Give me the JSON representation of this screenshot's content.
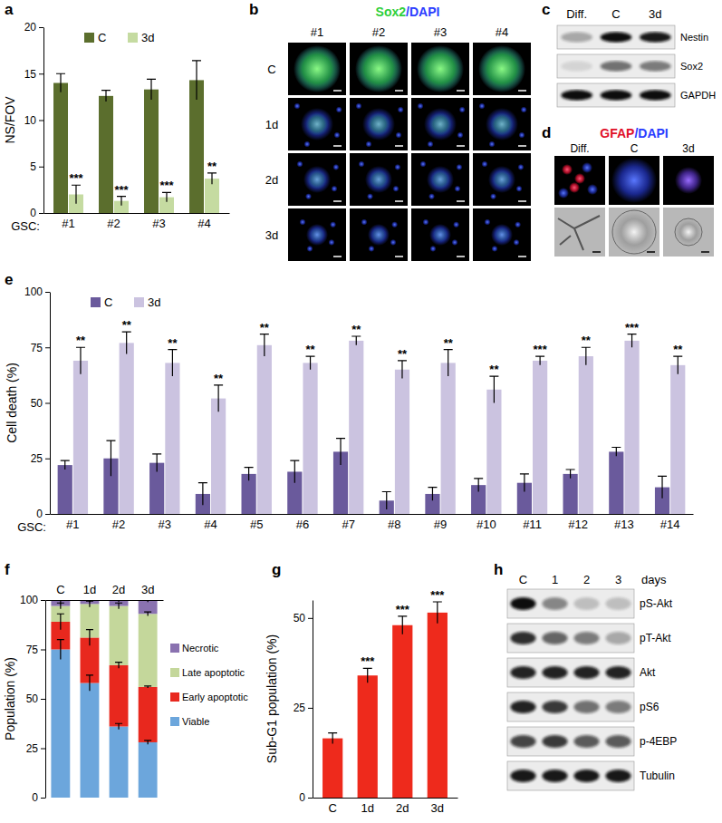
{
  "chart_data": [
    {
      "type": "bar",
      "title": "a",
      "xlabel": "GSC:",
      "ylabel": "NS/FOV",
      "categories": [
        "#1",
        "#2",
        "#3",
        "#4"
      ],
      "series": [
        {
          "name": "C",
          "color": "#5b6e2d",
          "values": [
            14,
            12.6,
            13.3,
            14.3
          ],
          "errors": [
            1,
            0.6,
            1.1,
            2.1
          ]
        },
        {
          "name": "3d",
          "color": "#c5dba1",
          "values": [
            2,
            1.3,
            1.7,
            3.7
          ],
          "errors": [
            1,
            0.5,
            0.5,
            0.6
          ],
          "annotations": [
            "***",
            "***",
            "***",
            "**"
          ]
        }
      ],
      "ylim": [
        0,
        20
      ],
      "yticks": [
        0,
        5,
        10,
        15,
        20
      ],
      "legend": "top"
    },
    {
      "type": "bar",
      "title": "e",
      "xlabel": "GSC:",
      "ylabel": "Cell death (%)",
      "categories": [
        "#1",
        "#2",
        "#3",
        "#4",
        "#5",
        "#6",
        "#7",
        "#8",
        "#9",
        "#10",
        "#11",
        "#12",
        "#13",
        "#14"
      ],
      "series": [
        {
          "name": "C",
          "color": "#6a5a9c",
          "values": [
            22,
            25,
            23,
            9,
            18,
            19,
            28,
            6,
            9,
            13,
            14,
            18,
            28,
            12
          ],
          "errors": [
            2,
            8,
            4,
            5,
            3,
            5,
            6,
            4,
            3,
            3,
            4,
            2,
            2,
            5
          ]
        },
        {
          "name": "3d",
          "color": "#cbc3e0",
          "values": [
            69,
            77,
            68,
            52,
            76,
            68,
            78,
            65,
            68,
            56,
            69,
            71,
            78,
            67
          ],
          "errors": [
            6,
            5,
            6,
            6,
            5,
            3,
            2,
            4,
            6,
            6,
            2,
            4,
            3,
            4
          ],
          "annotations": [
            "**",
            "**",
            "**",
            "**",
            "**",
            "**",
            "**",
            "**",
            "**",
            "**",
            "***",
            "**",
            "***",
            "**"
          ]
        }
      ],
      "ylim": [
        0,
        100
      ],
      "yticks": [
        0,
        25,
        50,
        75,
        100
      ],
      "legend": "top"
    },
    {
      "type": "bar",
      "stacked": true,
      "title": "f",
      "ylabel": "Population (%)",
      "categories": [
        "C",
        "1d",
        "2d",
        "3d"
      ],
      "series": [
        {
          "name": "Viable",
          "color": "#6ca6dc",
          "values": [
            75,
            58,
            36,
            28
          ],
          "errors": [
            5,
            4,
            1.5,
            1
          ]
        },
        {
          "name": "Early apoptotic",
          "color": "#e8281e",
          "values": [
            14,
            23,
            31,
            28
          ],
          "errors": [
            4,
            4,
            1.5,
            0.5
          ]
        },
        {
          "name": "Late apoptotic",
          "color": "#c4d79b",
          "values": [
            8,
            17,
            30,
            37
          ],
          "errors": [
            1.5,
            1.5,
            1.5,
            1
          ]
        },
        {
          "name": "Necrotic",
          "color": "#8a72b0",
          "values": [
            3,
            2,
            3,
            7
          ],
          "errors": [
            2,
            1,
            1,
            1
          ]
        }
      ],
      "ylim": [
        0,
        100
      ],
      "yticks": [
        0,
        25,
        50,
        75,
        100
      ],
      "legend": "right"
    },
    {
      "type": "bar",
      "title": "g",
      "ylabel": "Sub-G1 population (%)",
      "categories": [
        "C",
        "1d",
        "2d",
        "3d"
      ],
      "values": [
        16.5,
        34,
        48,
        51.5
      ],
      "errors": [
        1.5,
        2,
        2.5,
        3
      ],
      "annotations": [
        null,
        "***",
        "***",
        "***"
      ],
      "color": "#ee2a1c",
      "ylim": [
        0,
        55
      ],
      "yticks": [
        0,
        25,
        50
      ]
    }
  ],
  "image_panels": [
    {
      "type": "micrograph",
      "title": "b",
      "label_parts": [
        {
          "text": "Sox2",
          "color": "#2fcf3a"
        },
        {
          "text": "/DAPI",
          "color": "#2a3cff"
        }
      ],
      "columns": [
        "#1",
        "#2",
        "#3",
        "#4"
      ],
      "rows": [
        "C",
        "1d",
        "2d",
        "3d"
      ]
    },
    {
      "type": "blot",
      "title": "c",
      "columns": [
        "Diff.",
        "C",
        "3d"
      ],
      "rows": [
        "Nestin",
        "Sox2",
        "GAPDH"
      ],
      "bands": [
        [
          0.3,
          1,
          0.95
        ],
        [
          0.1,
          0.55,
          0.5
        ],
        [
          1,
          1,
          1
        ]
      ]
    },
    {
      "type": "micrograph",
      "title": "d",
      "label_parts": [
        {
          "text": "GFAP",
          "color": "#e0102a"
        },
        {
          "text": "/DAPI",
          "color": "#2a3cff"
        }
      ],
      "columns": [
        "Diff.",
        "C",
        "3d"
      ]
    },
    {
      "type": "blot",
      "title": "h",
      "column_title": "days",
      "columns": [
        "C",
        "1",
        "2",
        "3"
      ],
      "rows": [
        "pS-Akt",
        "pT-Akt",
        "Akt",
        "pS6",
        "p-4EBP",
        "Tubulin"
      ],
      "bands": [
        [
          1,
          0.45,
          0.2,
          0.2
        ],
        [
          0.85,
          0.6,
          0.5,
          0.3
        ],
        [
          0.9,
          0.9,
          0.9,
          0.9
        ],
        [
          0.9,
          0.8,
          0.55,
          0.5
        ],
        [
          0.75,
          0.8,
          0.65,
          0.65
        ],
        [
          0.95,
          0.95,
          0.95,
          0.95
        ]
      ]
    }
  ]
}
